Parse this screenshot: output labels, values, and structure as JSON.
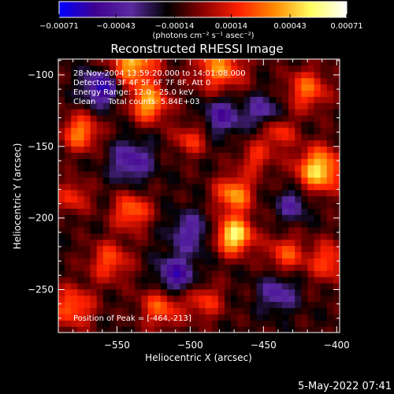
{
  "chart_data": {
    "type": "heatmap",
    "title": "Reconstructed RHESSI Image",
    "xlabel": "Heliocentric X (arcsec)",
    "ylabel": "Heliocentric Y (arcsec)",
    "xlim": [
      -590,
      -398
    ],
    "ylim": [
      -280,
      -89
    ],
    "xticks": [
      -550,
      -500,
      -450,
      -400
    ],
    "xtick_labels": [
      "−550",
      "−500",
      "−450",
      "−400"
    ],
    "yticks": [
      -100,
      -150,
      -200,
      -250
    ],
    "ytick_labels": [
      "−100",
      "−150",
      "−200",
      "−250"
    ],
    "colorbar": {
      "range": [
        -0.00071,
        0.00071
      ],
      "tick_values": [
        -0.00071,
        -0.00043,
        -0.00014,
        0.00014,
        0.00043,
        0.00071
      ],
      "tick_labels": [
        "−0.00071",
        "−0.00043",
        "−0.00014",
        "0.00014",
        "0.00043",
        "0.00071"
      ],
      "label": "(photons cm⁻² s⁻¹ asec⁻²)",
      "stops": [
        "#0000ff",
        "#400090",
        "#5a2aa0",
        "#000000",
        "#8a0000",
        "#ff2000",
        "#ff8a00",
        "#ffff60",
        "#ffffff"
      ]
    },
    "annotations": {
      "time": "28-Nov-2004 13:59:20.000 to 14:01:08.000",
      "detectors": "Detectors: 3F 4F 5F 6F 7F 8F, Att 0",
      "energy": "Energy Range: 12.0 - 25.0 keV",
      "counts": "Clean     Total counts: 5.84E+03",
      "peak": "Position of Peak = [-464,-213]"
    },
    "peak": [
      -464,
      -213
    ],
    "sources": [
      {
        "x": -470,
        "y": -212,
        "amp": 0.00068,
        "w": 9
      },
      {
        "x": -412,
        "y": -166,
        "amp": 0.00062,
        "w": 11
      },
      {
        "x": -470,
        "y": -183,
        "amp": 0.0005,
        "w": 9
      },
      {
        "x": -528,
        "y": -120,
        "amp": 0.00052,
        "w": 9
      },
      {
        "x": -540,
        "y": -92,
        "amp": 0.00055,
        "w": 12
      },
      {
        "x": -480,
        "y": -95,
        "amp": 0.00045,
        "w": 12
      },
      {
        "x": -575,
        "y": -140,
        "amp": 0.00045,
        "w": 9
      },
      {
        "x": -540,
        "y": -195,
        "amp": 0.00042,
        "w": 9
      },
      {
        "x": -555,
        "y": -230,
        "amp": 0.00035,
        "w": 10
      },
      {
        "x": -580,
        "y": -262,
        "amp": 0.0004,
        "w": 10
      },
      {
        "x": -520,
        "y": -262,
        "amp": 0.00038,
        "w": 10
      },
      {
        "x": -490,
        "y": -258,
        "amp": 0.0003,
        "w": 9
      },
      {
        "x": -420,
        "y": -110,
        "amp": 0.0004,
        "w": 10
      },
      {
        "x": -405,
        "y": -230,
        "amp": 0.00035,
        "w": 10
      },
      {
        "x": -435,
        "y": -225,
        "amp": 0.00035,
        "w": 9
      },
      {
        "x": -440,
        "y": -140,
        "amp": 0.00032,
        "w": 8
      },
      {
        "x": -500,
        "y": -145,
        "amp": 0.0003,
        "w": 8
      },
      {
        "x": -580,
        "y": -185,
        "amp": 0.0003,
        "w": 8
      },
      {
        "x": -455,
        "y": -158,
        "amp": 0.00028,
        "w": 8
      },
      {
        "x": -560,
        "y": -108,
        "amp": -0.0005,
        "w": 9
      },
      {
        "x": -510,
        "y": -240,
        "amp": -0.00042,
        "w": 9
      },
      {
        "x": -540,
        "y": -160,
        "amp": -0.00035,
        "w": 10
      },
      {
        "x": -478,
        "y": -128,
        "amp": -0.00035,
        "w": 9
      },
      {
        "x": -500,
        "y": -210,
        "amp": -0.0003,
        "w": 10
      },
      {
        "x": -440,
        "y": -252,
        "amp": -0.0003,
        "w": 9
      },
      {
        "x": -430,
        "y": -190,
        "amp": -0.00028,
        "w": 8
      },
      {
        "x": -450,
        "y": -125,
        "amp": -0.0003,
        "w": 8
      }
    ]
  },
  "footer": {
    "timestamp": "5-May-2022 07:41"
  }
}
